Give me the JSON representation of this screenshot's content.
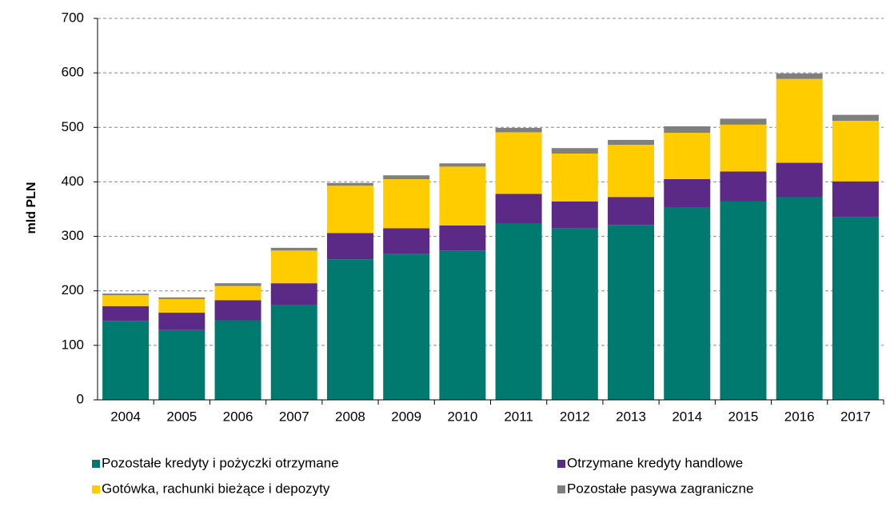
{
  "chart_data": {
    "type": "stacked_bar",
    "y_label": "mld PLN",
    "categories": [
      "2004",
      "2005",
      "2006",
      "2007",
      "2008",
      "2009",
      "2010",
      "2011",
      "2012",
      "2013",
      "2014",
      "2015",
      "2016",
      "2017"
    ],
    "series": [
      {
        "name": "Pozostałe kredyty i pożyczki otrzymane",
        "color": "#007a6e",
        "values": [
          145,
          128,
          146,
          174,
          258,
          268,
          274,
          323,
          315,
          321,
          353,
          364,
          372,
          335
        ]
      },
      {
        "name": "Otrzymane kredyty handlowe",
        "color": "#5b2a86",
        "values": [
          27,
          32,
          37,
          40,
          48,
          47,
          46,
          55,
          49,
          51,
          52,
          55,
          63,
          66
        ]
      },
      {
        "name": "Gotówka, rachunki bieżące i depozyty",
        "color": "#ffcc00",
        "values": [
          20,
          25,
          26,
          60,
          87,
          90,
          108,
          113,
          88,
          96,
          85,
          86,
          154,
          111
        ]
      },
      {
        "name": "Pozostałe pasywa zagraniczne",
        "color": "#7f7f7f",
        "values": [
          3,
          3,
          5,
          5,
          5,
          7,
          6,
          8,
          10,
          9,
          12,
          11,
          10,
          11
        ]
      }
    ],
    "ylim": [
      0,
      700
    ],
    "yticks": [
      0,
      100,
      200,
      300,
      400,
      500,
      600,
      700
    ],
    "grid": true
  }
}
